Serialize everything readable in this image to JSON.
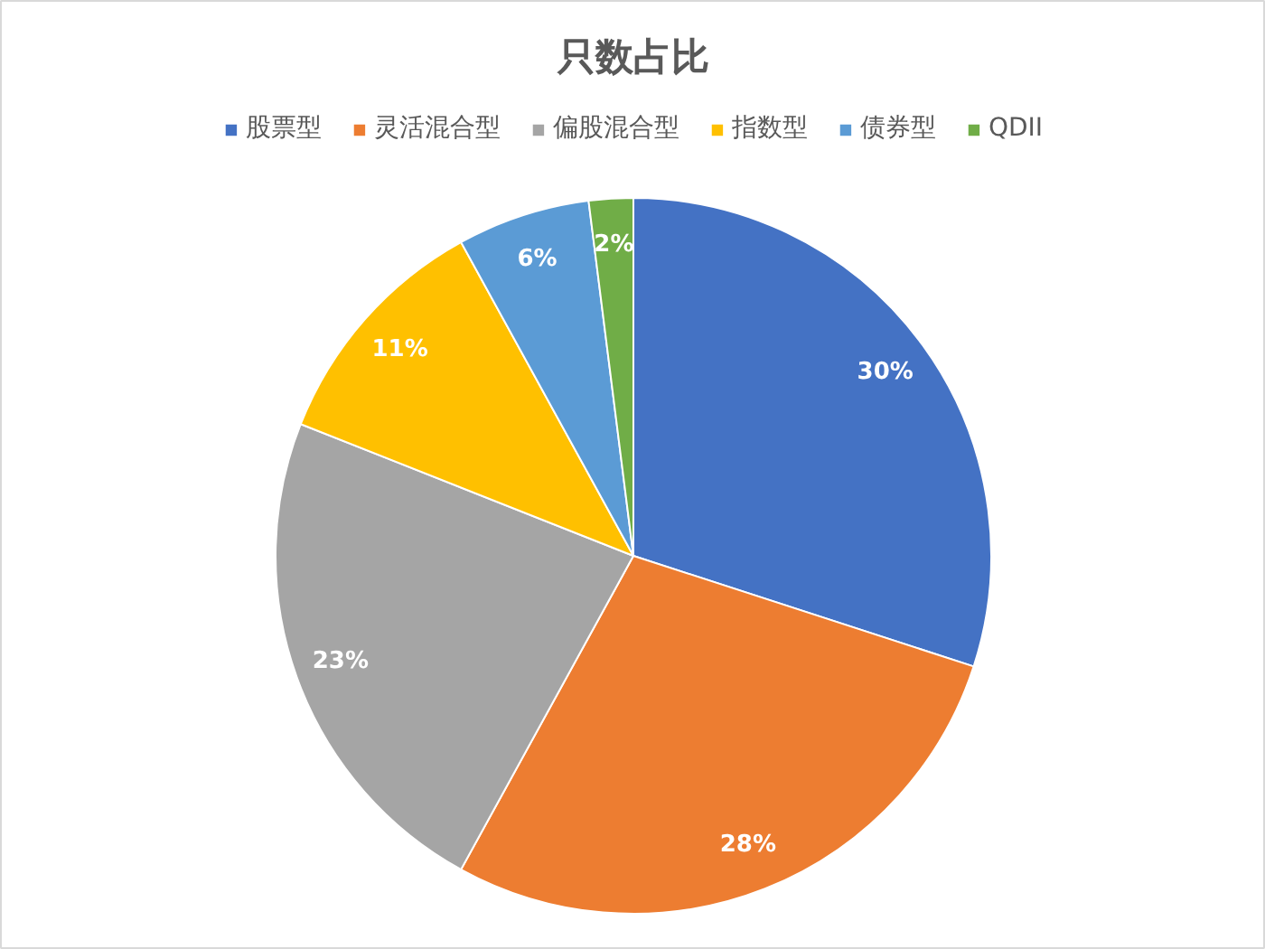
{
  "chart_data": {
    "type": "pie",
    "title": "只数占比",
    "categories": [
      "股票型",
      "灵活混合型",
      "偏股混合型",
      "指数型",
      "债券型",
      "QDII"
    ],
    "values": [
      30,
      28,
      23,
      11,
      6,
      2
    ],
    "colors": [
      "#4472c4",
      "#ed7d31",
      "#a5a5a5",
      "#ffc000",
      "#5b9bd5",
      "#70ad47"
    ],
    "value_labels": [
      "30%",
      "28%",
      "23%",
      "11%",
      "6%",
      "2%"
    ],
    "legend": "top"
  }
}
